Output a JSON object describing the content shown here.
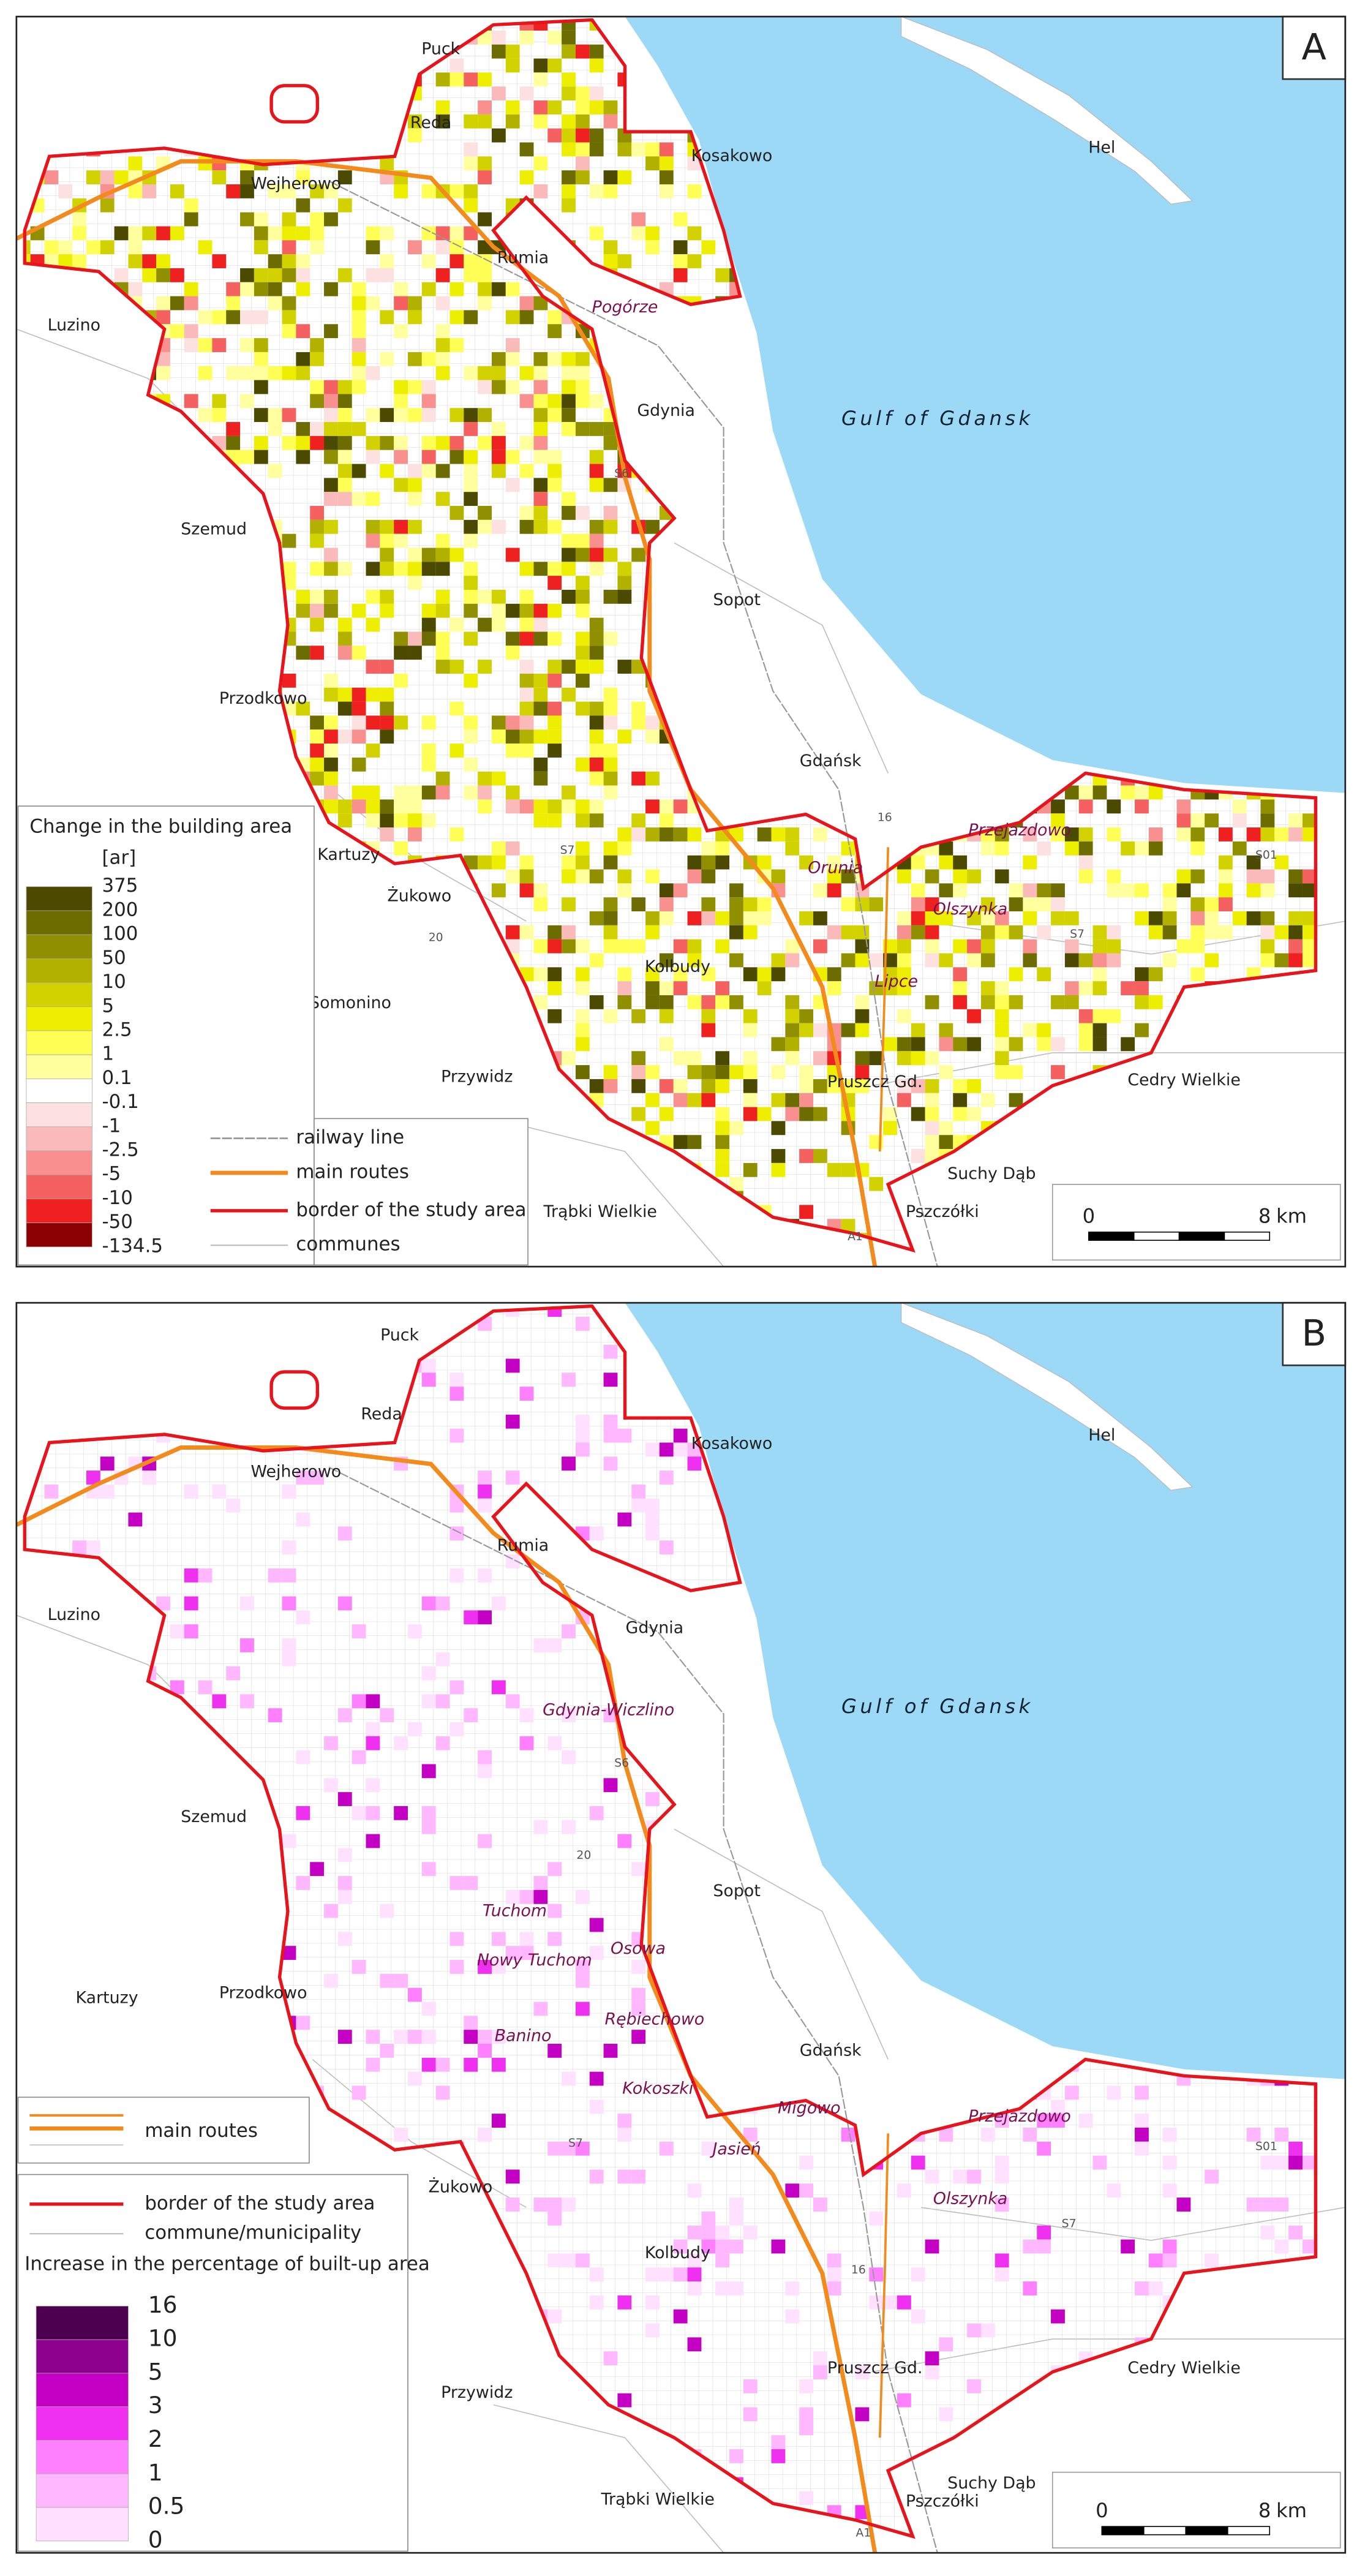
{
  "panels": [
    {
      "label": "A",
      "sea_label": "Gulf of Gdansk",
      "towns": [
        "Puck",
        "Reda",
        "Wejherowo",
        "Kosakowo",
        "Hel",
        "Rumia",
        "Luzino",
        "Gdynia",
        "Szemud",
        "Sopot",
        "Przodkowo",
        "Gdańsk",
        "Kartuzy",
        "Żukowo",
        "Kolbudy",
        "Somonino",
        "Cedry Wielkie",
        "Przywidz",
        "Pruszcz Gd.",
        "Suchy Dąb",
        "Trąbki Wielkie",
        "Pszczółki"
      ],
      "districts": [
        "Pogórze",
        "Przejazdowo",
        "Orunia",
        "Olszynka",
        "Lipce"
      ],
      "roads": [
        "S6",
        "S7",
        "16",
        "S01",
        "S7",
        "20",
        "A1"
      ],
      "legend": {
        "title": "Change in the building area",
        "unit": "[ar]",
        "breaks": [
          375,
          200,
          100,
          50,
          10,
          5,
          2.5,
          1,
          0.1,
          -0.1,
          -1,
          -2.5,
          -5,
          -10,
          -50,
          -134.5
        ],
        "colors": [
          "#4b4a00",
          "#6d6c00",
          "#908f00",
          "#b2b100",
          "#d2d200",
          "#eeee00",
          "#ffff55",
          "#ffff9e",
          "#ffffff",
          "#fde0e0",
          "#fbbaba",
          "#f89090",
          "#f56060",
          "#ee2020",
          "#8b0000"
        ]
      },
      "line_legend": [
        "railway line",
        "main routes",
        "border of the study area",
        "communes"
      ],
      "scale": {
        "start": 0,
        "end": 8,
        "unit": "km"
      }
    },
    {
      "label": "B",
      "sea_label": "Gulf of Gdansk",
      "towns": [
        "Puck",
        "Reda",
        "Wejherowo",
        "Kosakowo",
        "Hel",
        "Rumia",
        "Luzino",
        "Gdynia",
        "Szemud",
        "Sopot",
        "Kartuzy",
        "Przodkowo",
        "Gdańsk",
        "Żukowo",
        "Kolbudy",
        "Pruszcz Gd.",
        "Cedry Wielkie",
        "Przywidz",
        "Suchy Dąb",
        "Trąbki Wielkie",
        "Pszczółki"
      ],
      "districts": [
        "Gdynia-Wiczlino",
        "Tuchom",
        "Nowy Tuchom",
        "Osowa",
        "Rębiechowo",
        "Banino",
        "Kokoszki",
        "Migowo",
        "Przejazdowo",
        "Jasień",
        "Olszynka"
      ],
      "roads": [
        "S6",
        "20",
        "S7",
        "S01",
        "S7",
        "16",
        "A1"
      ],
      "legend": {
        "title": "Increase in the percentage of built-up area",
        "breaks": [
          16,
          10,
          5,
          3,
          2,
          1,
          0.5,
          0
        ],
        "colors": [
          "#4d0050",
          "#8e008e",
          "#c400c4",
          "#f030f0",
          "#ff80ff",
          "#ffb8ff",
          "#ffe0ff"
        ]
      },
      "line_legend": [
        "main routes",
        "border of the study area",
        "commune/municipality"
      ],
      "scale": {
        "start": 0,
        "end": 8,
        "unit": "km"
      }
    }
  ]
}
